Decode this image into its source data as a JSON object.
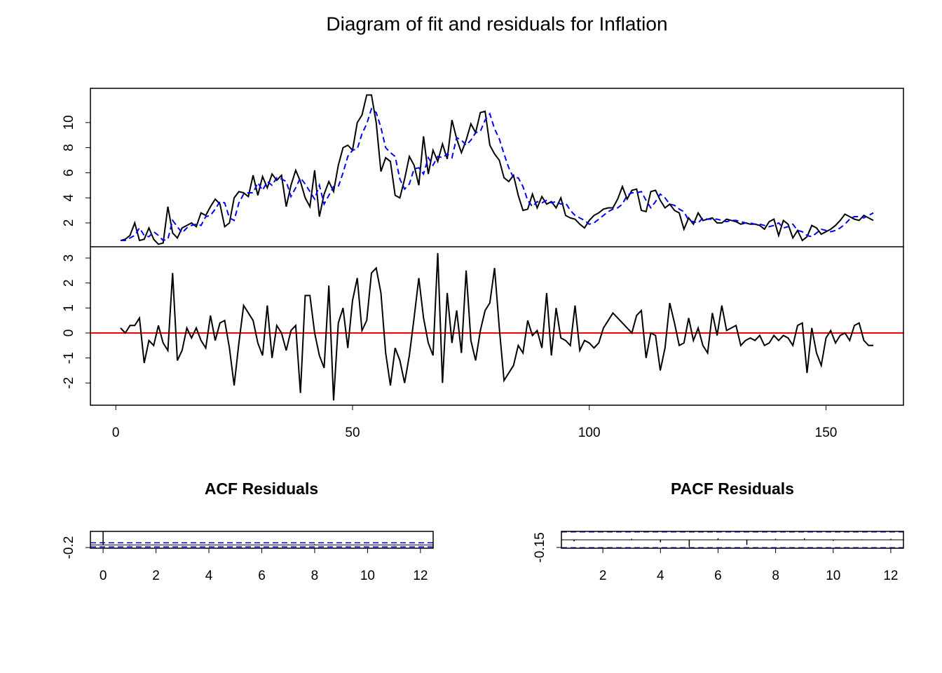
{
  "title": "Diagram of fit and residuals for Inflation",
  "chart_data": [
    {
      "type": "line",
      "x": [
        1,
        2,
        3,
        4,
        5,
        6,
        7,
        8,
        9,
        10,
        11,
        12,
        13,
        14,
        15,
        16,
        17,
        18,
        19,
        20,
        21,
        22,
        23,
        24,
        25,
        26,
        27,
        28,
        29,
        30,
        31,
        32,
        33,
        34,
        35,
        36,
        37,
        38,
        39,
        40,
        41,
        42,
        43,
        44,
        45,
        46,
        47,
        48,
        49,
        50,
        51,
        52,
        53,
        54,
        55,
        56,
        57,
        58,
        59,
        60,
        61,
        62,
        63,
        64,
        65,
        66,
        67,
        68,
        69,
        70,
        71,
        72,
        73,
        74,
        75,
        76,
        77,
        78,
        79,
        80,
        81,
        82,
        83,
        84,
        85,
        86,
        87,
        88,
        89,
        90,
        91,
        92,
        93,
        94,
        95,
        96,
        97,
        98,
        99,
        100,
        101,
        102,
        103,
        104,
        105,
        106,
        107,
        108,
        109,
        110,
        111,
        112,
        113,
        114,
        115,
        116,
        117,
        118,
        119,
        120,
        121,
        122,
        123,
        124,
        125,
        126,
        127,
        128,
        129,
        130,
        131,
        132,
        133,
        134,
        135,
        136,
        137,
        138,
        139,
        140,
        141,
        142,
        143,
        144,
        145,
        146,
        147,
        148,
        149,
        150,
        151,
        152,
        153,
        154,
        155,
        156,
        157,
        158,
        159,
        160
      ],
      "xlim": [
        -5.36,
        166.36
      ],
      "xticks": [
        0,
        50,
        100,
        150
      ],
      "ylim": [
        0.1,
        12.73
      ],
      "yticks": [
        2,
        4,
        6,
        8,
        10
      ],
      "y2lim": [
        -2.89,
        3.45
      ],
      "y2ticks": [
        -2,
        -1,
        0,
        1,
        2,
        3
      ],
      "reference_line": {
        "axis": "y2",
        "value": 0,
        "color": "#ff0000"
      },
      "series": [
        {
          "color": "#000000",
          "linestyle": "solid",
          "values": [
            0.6,
            0.7,
            1.0,
            2.0,
            0.6,
            0.7,
            1.6,
            0.7,
            0.3,
            0.4,
            3.3,
            1.2,
            0.8,
            1.6,
            1.8,
            2.0,
            1.7,
            2.8,
            2.6,
            3.3,
            3.9,
            3.5,
            1.7,
            2.0,
            4.0,
            4.5,
            4.4,
            4.1,
            5.8,
            4.2,
            5.7,
            4.8,
            5.9,
            5.4,
            5.8,
            3.3,
            5.0,
            6.2,
            5.3,
            4.0,
            3.3,
            6.2,
            2.5,
            4.3,
            5.3,
            4.5,
            6.6,
            8.0,
            8.2,
            7.8,
            10.0,
            10.6,
            12.2,
            12.2,
            10.0,
            6.1,
            7.2,
            6.9,
            4.2,
            4.0,
            5.5,
            7.3,
            6.6,
            5.0,
            8.9,
            5.9,
            7.8,
            6.9,
            8.3,
            7.1,
            10.2,
            8.7,
            7.6,
            8.6,
            9.9,
            9.2,
            10.8,
            10.9,
            8.2,
            7.5,
            7.0,
            5.6,
            5.3,
            5.8,
            4.2,
            3.0,
            3.1,
            4.3,
            3.2,
            4.1,
            3.5,
            3.7,
            3.2,
            4.0,
            2.6,
            2.4,
            2.3,
            1.9,
            1.6,
            2.2,
            2.6,
            2.8,
            3.1,
            3.2,
            3.2,
            3.9,
            4.9,
            3.9,
            4.6,
            4.7,
            3.0,
            2.9,
            4.5,
            4.6,
            3.8,
            3.2,
            3.5,
            3.0,
            2.8,
            1.5,
            2.4,
            1.9,
            2.8,
            2.2,
            2.3,
            2.4,
            2.0,
            2.0,
            2.3,
            2.2,
            2.1,
            1.9,
            2.0,
            1.9,
            1.9,
            1.8,
            1.5,
            2.1,
            2.3,
            1.0,
            2.2,
            1.9,
            0.8,
            1.4,
            0.6,
            0.9,
            1.8,
            1.6,
            1.1,
            1.3,
            1.5,
            1.8,
            2.2,
            2.7,
            2.5,
            2.3,
            2.2,
            2.6,
            2.4,
            2.2
          ]
        },
        {
          "color": "#0000ff",
          "linestyle": "dashed",
          "values": [
            0.6,
            0.6,
            0.8,
            1.0,
            1.6,
            1.0,
            0.9,
            1.3,
            1.0,
            0.6,
            0.7,
            2.2,
            1.7,
            1.2,
            1.6,
            1.8,
            1.9,
            1.8,
            2.5,
            2.6,
            3.1,
            3.7,
            3.6,
            2.4,
            2.2,
            3.6,
            4.3,
            4.4,
            4.4,
            5.2,
            4.6,
            5.3,
            5.0,
            5.6,
            5.5,
            5.3,
            4.1,
            4.8,
            5.6,
            5.1,
            4.5,
            3.9,
            5.0,
            3.5,
            4.2,
            4.9,
            4.9,
            6.0,
            7.3,
            7.8,
            7.9,
            9.1,
            9.9,
            11.1,
            10.8,
            9.6,
            8.0,
            7.6,
            7.3,
            5.5,
            4.7,
            5.1,
            6.3,
            6.4,
            5.9,
            7.2,
            6.6,
            7.3,
            7.2,
            7.5,
            7.2,
            8.8,
            8.6,
            8.2,
            8.6,
            9.2,
            9.3,
            10.2,
            10.7,
            9.5,
            8.7,
            7.5,
            6.4,
            5.6,
            5.6,
            4.9,
            3.8,
            3.3,
            3.7,
            3.6,
            3.8,
            3.6,
            3.7,
            3.5,
            3.6,
            3.0,
            2.6,
            2.4,
            2.2,
            1.9,
            2.0,
            2.3,
            2.6,
            2.9,
            3.1,
            3.2,
            3.5,
            4.2,
            4.4,
            4.4,
            4.5,
            3.8,
            3.2,
            3.7,
            4.3,
            4.0,
            3.5,
            3.4,
            3.1,
            2.9,
            2.2,
            2.1,
            2.0,
            2.4,
            2.3,
            2.3,
            2.3,
            2.2,
            2.1,
            2.2,
            2.2,
            2.1,
            2.0,
            2.0,
            1.9,
            1.9,
            1.8,
            1.7,
            1.8,
            2.0,
            1.6,
            1.7,
            1.9,
            1.4,
            1.3,
            1.0,
            0.9,
            1.2,
            1.5,
            1.4,
            1.3,
            1.4,
            1.6,
            1.9,
            2.3,
            2.5,
            2.5,
            2.4,
            2.6,
            2.8
          ]
        },
        {
          "color": "#000000",
          "linestyle": "solid",
          "axis": "y2",
          "values": [
            0.2,
            0.0,
            0.3,
            0.3,
            0.6,
            -1.2,
            -0.3,
            -0.5,
            0.3,
            -0.4,
            -0.7,
            2.4,
            -1.1,
            -0.7,
            0.2,
            -0.2,
            0.2,
            -0.3,
            -0.6,
            0.7,
            -0.3,
            0.4,
            0.5,
            -0.6,
            -2.1,
            -0.4,
            1.1,
            0.8,
            0.5,
            -0.4,
            -0.9,
            1.1,
            -1.0,
            0.3,
            0.0,
            -0.7,
            0.1,
            0.3,
            -2.4,
            1.5,
            1.5,
            0.0,
            -0.9,
            -1.4,
            1.9,
            -2.7,
            0.4,
            1.0,
            -0.6,
            1.3,
            2.2,
            0.1,
            0.5,
            2.4,
            2.6,
            1.6,
            -0.8,
            -2.1,
            -0.6,
            -1.1,
            -2.0,
            -0.9,
            0.6,
            2.2,
            0.6,
            -0.4,
            -0.9,
            3.2,
            -2.0,
            1.6,
            -0.4,
            0.9,
            -0.8,
            2.5,
            -0.3,
            -1.1,
            0.1,
            0.9,
            1.2,
            2.6,
            0.2,
            -1.9,
            -1.6,
            -1.3,
            -0.5,
            -0.8,
            0.5,
            -0.1,
            0.1,
            -0.6,
            1.6,
            -0.9,
            1.0,
            -0.2,
            -0.3,
            -0.5,
            1.1,
            -0.7,
            -0.3,
            -0.4,
            -0.6,
            -0.4,
            0.2,
            0.5,
            0.8,
            0.6,
            0.4,
            0.2,
            0.0,
            0.7,
            0.9,
            -1.0,
            0.0,
            -0.1,
            -1.5,
            -0.6,
            1.2,
            0.4,
            -0.5,
            -0.4,
            0.6,
            -0.3,
            0.2,
            -0.5,
            -0.8,
            0.8,
            -0.1,
            1.1,
            0.1,
            0.2,
            0.3,
            -0.5,
            -0.3,
            -0.2,
            -0.3,
            -0.1,
            -0.5,
            -0.4,
            -0.1,
            -0.3,
            -0.1,
            -0.2,
            -0.5,
            0.3,
            0.4,
            -1.6,
            0.2,
            -0.8,
            -1.3,
            -0.2,
            0.1,
            -0.4,
            -0.1,
            0.0,
            -0.3,
            0.3,
            0.4,
            -0.3,
            -0.5,
            -0.5
          ]
        }
      ]
    },
    {
      "type": "acf",
      "title": "ACF Residuals",
      "x": [
        0,
        1,
        2,
        3,
        4,
        5,
        6,
        7,
        8,
        9,
        10,
        11,
        12
      ],
      "values": [
        1,
        -0.05,
        0.02,
        -0.03,
        0.04,
        0.0,
        -0.06,
        0.03,
        0.05,
        -0.02,
        0.01,
        -0.04,
        0.02
      ],
      "xlim": [
        -0.48,
        12.48
      ],
      "xticks": [
        0,
        2,
        4,
        6,
        8,
        10,
        12
      ],
      "ylim": [
        -0.25,
        1
      ],
      "yticks": [
        -0.2
      ],
      "bounds": [
        -0.155,
        0.155
      ],
      "bound_color": "#0000ff",
      "color": "#000000"
    },
    {
      "type": "acf",
      "title": "PACF Residuals",
      "x": [
        1,
        2,
        3,
        4,
        5,
        6,
        7,
        8,
        9,
        10,
        11,
        12
      ],
      "values": [
        -0.03,
        0.01,
        0.02,
        -0.05,
        -0.14,
        0.03,
        -0.1,
        0.02,
        0.03,
        -0.02,
        0.01,
        0.02
      ],
      "xlim": [
        0.56,
        12.44
      ],
      "xticks": [
        2,
        4,
        6,
        8,
        10,
        12
      ],
      "ylim": [
        -0.165,
        0.165
      ],
      "yticks": [
        -0.15
      ],
      "bounds": [
        -0.155,
        0.155
      ],
      "bound_color": "#0000ff",
      "color": "#000000"
    }
  ]
}
